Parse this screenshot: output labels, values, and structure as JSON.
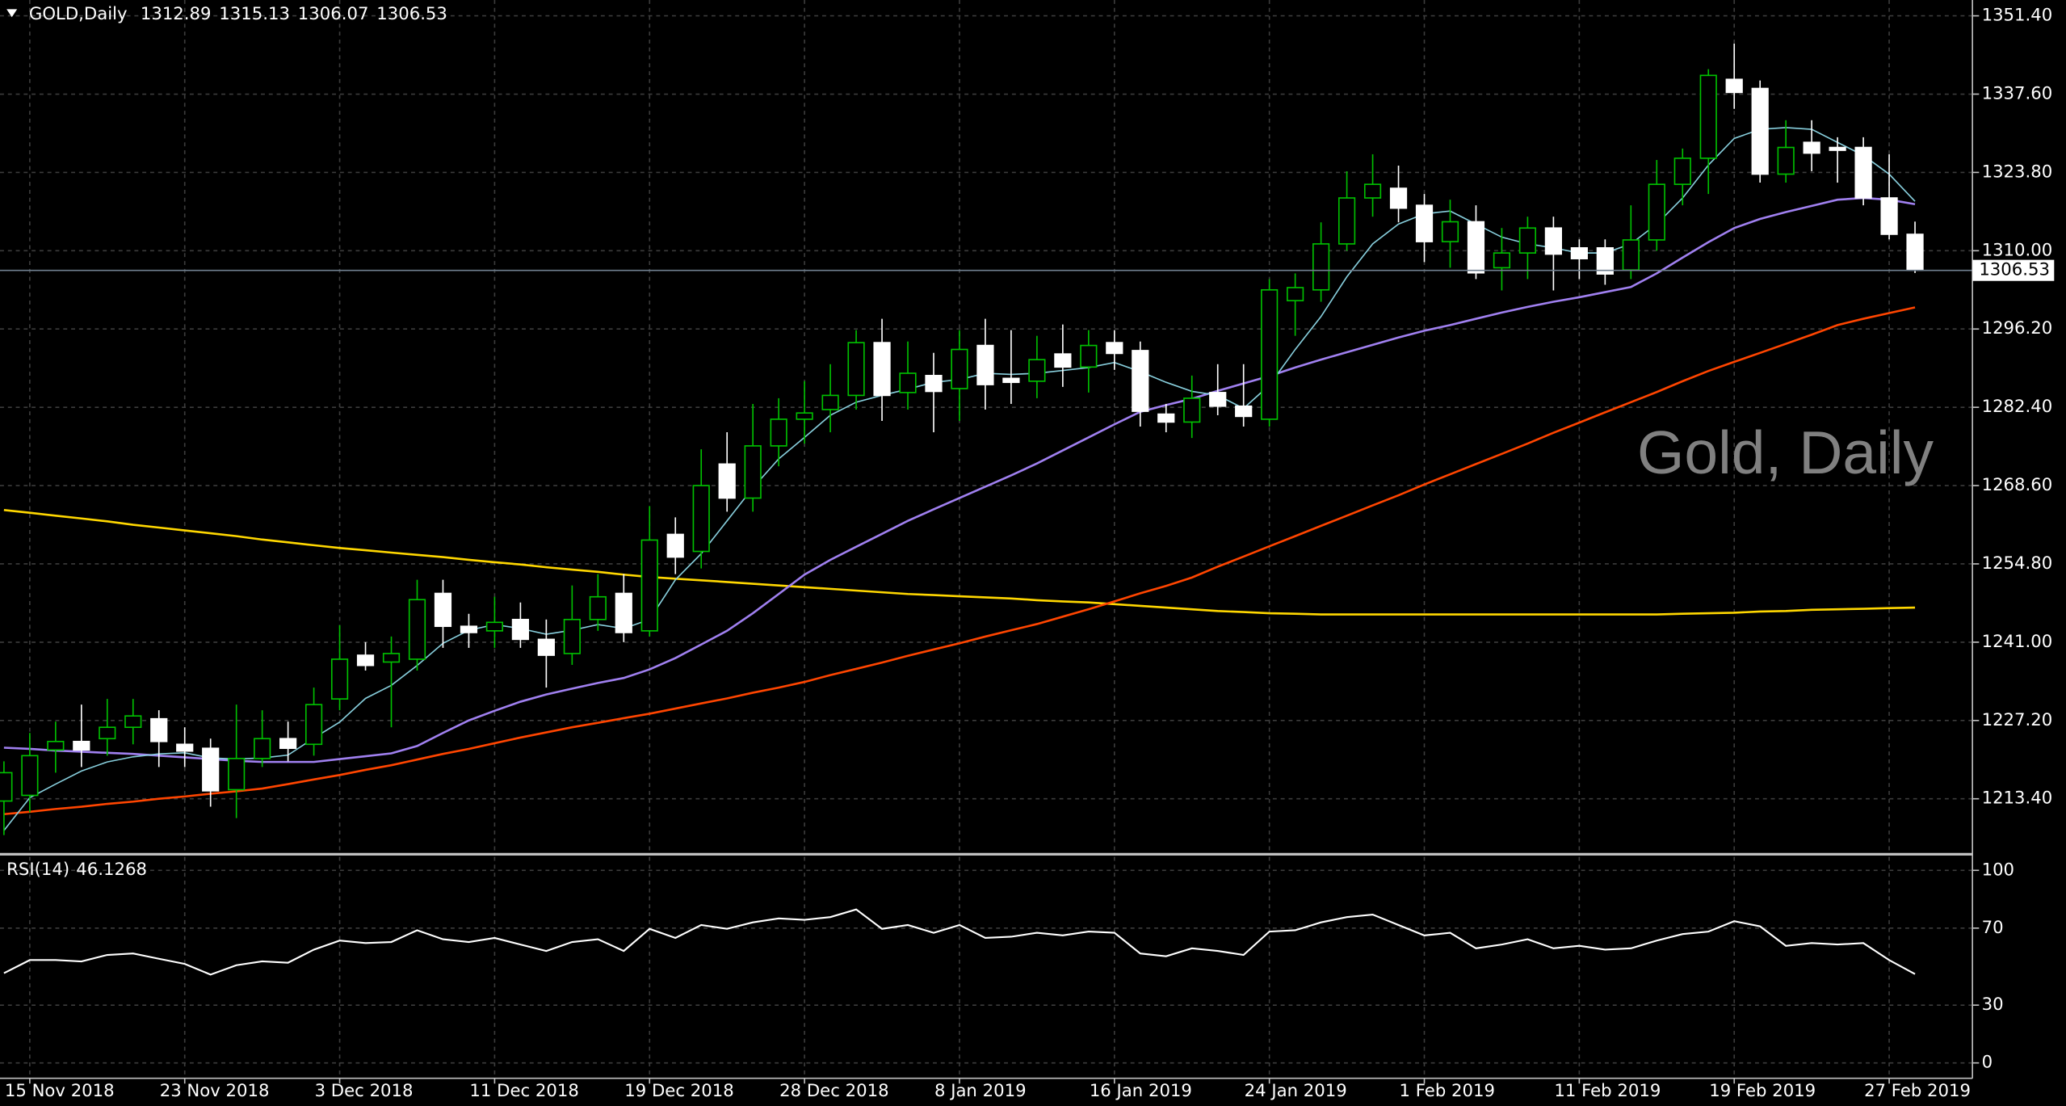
{
  "chart_data": [
    {
      "type": "candlestick",
      "title": "GOLD,Daily",
      "watermark": "Gold, Daily",
      "categories": [
        null,
        "15 Nov 2018",
        null,
        null,
        null,
        null,
        null,
        "23 Nov 2018",
        null,
        null,
        null,
        null,
        null,
        "3 Dec 2018",
        null,
        null,
        null,
        null,
        null,
        "11 Dec 2018",
        null,
        null,
        null,
        null,
        null,
        "19 Dec 2018",
        null,
        null,
        null,
        null,
        null,
        "28 Dec 2018",
        null,
        null,
        null,
        null,
        null,
        "8 Jan 2019",
        null,
        null,
        null,
        null,
        null,
        "16 Jan 2019",
        null,
        null,
        null,
        null,
        null,
        "24 Jan 2019",
        null,
        null,
        null,
        null,
        null,
        "1 Feb 2019",
        null,
        null,
        null,
        null,
        null,
        "11 Feb 2019",
        null,
        null,
        null,
        null,
        null,
        "19 Feb 2019",
        null,
        null,
        null,
        null,
        null,
        "27 Feb 2019",
        null
      ],
      "ohlc": {
        "open": [
          1213,
          1214,
          1222,
          1223.5,
          1224,
          1226,
          1227.5,
          1223,
          1222.3,
          1215,
          1220.5,
          1224,
          1223,
          1231,
          1238.7,
          1237.5,
          1238,
          1249.6,
          1243.8,
          1243,
          1245,
          1241.5,
          1239,
          1245,
          1249.6,
          1243,
          1260,
          1257,
          1272.4,
          1266.4,
          1275.6,
          1280.3,
          1282,
          1284.5,
          1293.8,
          1285,
          1288,
          1285.7,
          1293.3,
          1287.5,
          1287,
          1291.8,
          1289.5,
          1293.8,
          1292.4,
          1281.2,
          1279.8,
          1285,
          1282.6,
          1280.3,
          1301.2,
          1303.1,
          1311.2,
          1319.3,
          1321,
          1318,
          1311.6,
          1315.1,
          1307,
          1309.6,
          1314,
          1310.5,
          1310.5,
          1306.6,
          1311.9,
          1321.7,
          1326.3,
          1340.2,
          1338.6,
          1323.5,
          1329.1,
          1328.2,
          1328.2,
          1319.3,
          1312.89
        ],
        "high": [
          1220,
          1225,
          1227,
          1230,
          1231,
          1231,
          1229,
          1226,
          1224,
          1230,
          1229,
          1227,
          1233,
          1244,
          1241,
          1242,
          1252,
          1252,
          1246,
          1249,
          1248,
          1245,
          1251,
          1253,
          1253,
          1265,
          1263,
          1275,
          1278,
          1283,
          1284,
          1287,
          1290,
          1296,
          1298,
          1294,
          1292,
          1296,
          1298,
          1296,
          1295,
          1297,
          1296,
          1296,
          1294,
          1283,
          1288,
          1290,
          1290,
          1305,
          1306,
          1315,
          1324,
          1327,
          1325,
          1320,
          1319,
          1318,
          1314,
          1316,
          1316,
          1312,
          1312,
          1318,
          1326,
          1328,
          1342,
          1346.5,
          1340,
          1333,
          1333,
          1330,
          1330,
          1327,
          1315.13
        ],
        "low": [
          1207,
          1211,
          1218,
          1219,
          1221,
          1223,
          1219,
          1219,
          1212,
          1210,
          1219,
          1220,
          1221,
          1229,
          1236,
          1226,
          1236,
          1240,
          1240,
          1240,
          1240,
          1233,
          1237,
          1243,
          1241,
          1242,
          1253,
          1254,
          1264,
          1264,
          1272,
          1276,
          1278,
          1282,
          1280,
          1282,
          1278,
          1280,
          1282,
          1283,
          1284,
          1286,
          1285,
          1289,
          1279,
          1278,
          1277,
          1281,
          1279,
          1279,
          1295,
          1301,
          1310,
          1316,
          1315,
          1308,
          1307,
          1305,
          1303,
          1305,
          1303,
          1305,
          1304,
          1305,
          1310,
          1318,
          1320,
          1335,
          1322,
          1322,
          1324,
          1322,
          1318,
          1312,
          1306.07
        ],
        "close": [
          1218,
          1221,
          1223.5,
          1222,
          1226,
          1228,
          1223.5,
          1221.8,
          1214.8,
          1220.5,
          1224,
          1222.3,
          1230,
          1238,
          1236.9,
          1239,
          1248.5,
          1243.8,
          1242.7,
          1244.5,
          1241.5,
          1238.7,
          1245,
          1249,
          1242.7,
          1259,
          1256,
          1268.6,
          1266.4,
          1275.6,
          1280.3,
          1281.4,
          1284.5,
          1293.8,
          1284.5,
          1288.4,
          1285.2,
          1292.6,
          1286.4,
          1286.8,
          1290.8,
          1289.5,
          1293.3,
          1291.9,
          1281.7,
          1279.8,
          1284,
          1282.6,
          1280.8,
          1303.1,
          1303.5,
          1311.2,
          1319.3,
          1321.7,
          1317.5,
          1311.6,
          1315.1,
          1306.1,
          1309.6,
          1314,
          1309.4,
          1308.6,
          1305.9,
          1311.9,
          1321.7,
          1326.3,
          1340.9,
          1337.9,
          1323.5,
          1328.2,
          1327.2,
          1327.7,
          1319.3,
          1312.9,
          1306.53
        ]
      },
      "up_color": "#00c000",
      "down_color": "#ffffff",
      "moving_averages": [
        {
          "color": "#ffd700",
          "values": [
            1264.3,
            1263.8,
            1263.3,
            1262.8,
            1262.3,
            1261.7,
            1261.2,
            1260.7,
            1260.2,
            1259.7,
            1259.1,
            1258.6,
            1258.1,
            1257.6,
            1257.2,
            1256.8,
            1256.4,
            1256.0,
            1255.5,
            1255.1,
            1254.7,
            1254.2,
            1253.8,
            1253.4,
            1252.9,
            1252.5,
            1252.2,
            1251.9,
            1251.6,
            1251.3,
            1251.0,
            1250.7,
            1250.4,
            1250.1,
            1249.8,
            1249.5,
            1249.3,
            1249.1,
            1248.9,
            1248.7,
            1248.4,
            1248.2,
            1248.0,
            1247.7,
            1247.4,
            1247.1,
            1246.8,
            1246.5,
            1246.3,
            1246.1,
            1246.0,
            1245.9,
            1245.9,
            1245.9,
            1245.9,
            1245.9,
            1245.9,
            1245.9,
            1245.9,
            1245.9,
            1245.9,
            1245.9,
            1245.9,
            1245.9,
            1245.9,
            1246.0,
            1246.1,
            1246.2,
            1246.4,
            1246.5,
            1246.7,
            1246.8,
            1246.9,
            1247.0,
            1247.1
          ]
        },
        {
          "color": "#ff4500",
          "values": [
            1210.7,
            1211.1,
            1211.6,
            1212.0,
            1212.5,
            1212.9,
            1213.4,
            1213.8,
            1214.3,
            1214.7,
            1215.2,
            1216.0,
            1216.8,
            1217.6,
            1218.5,
            1219.3,
            1220.3,
            1221.3,
            1222.2,
            1223.2,
            1224.2,
            1225.1,
            1226.0,
            1226.8,
            1227.6,
            1228.4,
            1229.3,
            1230.2,
            1231.1,
            1232.1,
            1233.0,
            1234.0,
            1235.2,
            1236.3,
            1237.4,
            1238.6,
            1239.7,
            1240.8,
            1242.0,
            1243.1,
            1244.2,
            1245.5,
            1246.8,
            1248.2,
            1249.6,
            1250.9,
            1252.4,
            1254.3,
            1256.1,
            1257.9,
            1259.7,
            1261.5,
            1263.3,
            1265.1,
            1266.9,
            1268.8,
            1270.6,
            1272.4,
            1274.2,
            1276.0,
            1277.9,
            1279.7,
            1281.5,
            1283.3,
            1285.1,
            1287.0,
            1288.8,
            1290.4,
            1292.0,
            1293.6,
            1295.2,
            1296.9,
            1298.0,
            1299.0,
            1300.0
          ]
        },
        {
          "color": "#a080f0",
          "values": [
            1222.4,
            1222.2,
            1221.9,
            1221.7,
            1221.5,
            1221.3,
            1221.0,
            1220.7,
            1220.4,
            1220.1,
            1219.9,
            1219.9,
            1219.9,
            1220.4,
            1220.9,
            1221.4,
            1222.7,
            1225.0,
            1227.2,
            1228.9,
            1230.5,
            1231.8,
            1232.8,
            1233.8,
            1234.7,
            1236.2,
            1238.2,
            1240.6,
            1243.0,
            1246.1,
            1249.5,
            1252.9,
            1255.5,
            1257.8,
            1260.1,
            1262.4,
            1264.4,
            1266.4,
            1268.4,
            1270.4,
            1272.5,
            1274.8,
            1277.1,
            1279.4,
            1281.6,
            1282.8,
            1283.9,
            1285.3,
            1286.6,
            1287.9,
            1289.4,
            1290.8,
            1292.1,
            1293.4,
            1294.7,
            1295.9,
            1296.9,
            1298.0,
            1299.1,
            1300.1,
            1301.0,
            1301.8,
            1302.7,
            1303.6,
            1306.0,
            1308.8,
            1311.5,
            1314.0,
            1315.6,
            1316.8,
            1317.9,
            1319.0,
            1319.3,
            1319.0,
            1318.2
          ]
        },
        {
          "color": "#87cedc",
          "values": [
            1207.8,
            1213.6,
            1216.0,
            1218.3,
            1219.9,
            1220.8,
            1221.3,
            1221.5,
            1220.6,
            1220.4,
            1220.6,
            1221.1,
            1224.1,
            1226.9,
            1231.1,
            1233.4,
            1236.9,
            1240.8,
            1243.1,
            1244.1,
            1243.4,
            1242.4,
            1243.1,
            1244.1,
            1243.4,
            1245.0,
            1252.0,
            1256.6,
            1262.4,
            1268.2,
            1273.3,
            1277.1,
            1281.0,
            1283.3,
            1284.5,
            1285.6,
            1286.8,
            1287.3,
            1288.4,
            1288.2,
            1288.4,
            1288.9,
            1289.4,
            1290.3,
            1288.7,
            1286.8,
            1285.2,
            1284.5,
            1282.2,
            1286.3,
            1292.6,
            1298.4,
            1305.4,
            1311.2,
            1314.7,
            1316.5,
            1317.0,
            1314.7,
            1312.4,
            1311.2,
            1310.5,
            1309.6,
            1309.6,
            1311.2,
            1314.7,
            1319.3,
            1325.1,
            1329.8,
            1331.4,
            1331.7,
            1331.4,
            1329.1,
            1326.8,
            1323.5,
            1318.7
          ]
        }
      ],
      "ylim": [
        1203.86,
        1354.19
      ],
      "yticks": [
        {
          "value": 1351.4,
          "label": "1351.40"
        },
        {
          "value": 1337.6,
          "label": "1337.60"
        },
        {
          "value": 1323.8,
          "label": "1323.80"
        },
        {
          "value": 1310,
          "label": "1310.00"
        },
        {
          "value": 1296.2,
          "label": "1296.20"
        },
        {
          "value": 1282.4,
          "label": "1282.40"
        },
        {
          "value": 1268.6,
          "label": "1268.60"
        },
        {
          "value": 1254.8,
          "label": "1254.80"
        },
        {
          "value": 1241,
          "label": "1241.00"
        },
        {
          "value": 1227.2,
          "label": "1227.20"
        },
        {
          "value": 1213.4,
          "label": "1213.40"
        }
      ],
      "grid": true
    },
    {
      "type": "line",
      "title": "RSI(14)",
      "color": "#ffffff",
      "values": [
        46.6,
        53.4,
        53.4,
        52.7,
        56.1,
        56.8,
        54.1,
        51.4,
        45.9,
        50.7,
        52.7,
        52.0,
        58.8,
        63.5,
        62.2,
        62.8,
        68.9,
        64.2,
        62.8,
        64.9,
        61.5,
        58.1,
        62.8,
        64.2,
        58.1,
        69.6,
        64.9,
        71.6,
        69.6,
        73.0,
        75.0,
        74.3,
        75.7,
        79.7,
        69.6,
        71.6,
        67.6,
        71.6,
        64.9,
        65.5,
        67.6,
        66.2,
        68.2,
        67.6,
        56.8,
        55.4,
        59.5,
        58.1,
        56.1,
        68.2,
        68.9,
        73.0,
        75.7,
        77.0,
        71.6,
        66.2,
        67.6,
        59.5,
        61.5,
        64.2,
        59.5,
        60.8,
        58.8,
        59.5,
        63.5,
        66.9,
        68.2,
        73.6,
        70.9,
        60.8,
        62.2,
        61.5,
        62.2,
        53.4,
        46.1268
      ],
      "ylim": [
        -8,
        107
      ],
      "yticks": [
        100,
        70,
        30,
        0
      ],
      "grid": true
    }
  ]
}
